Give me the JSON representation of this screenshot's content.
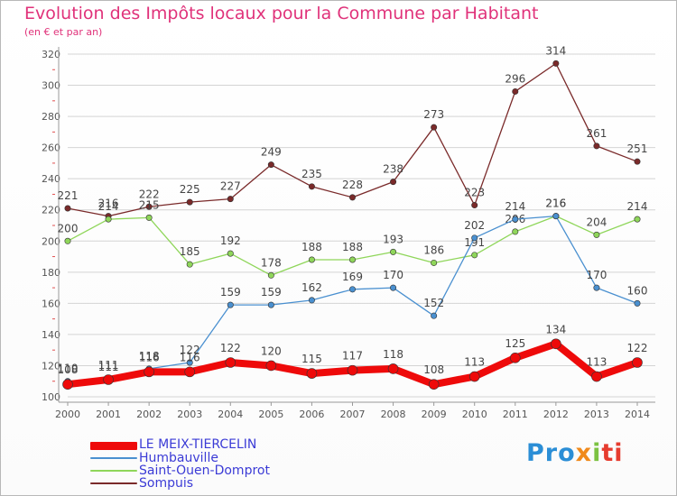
{
  "header": {
    "title": "Evolution des Impôts locaux pour la Commune par Habitant",
    "subtitle": "(en € et par an)"
  },
  "logo": {
    "parts": [
      "Pro",
      "x",
      "i",
      "ti"
    ]
  },
  "colors": {
    "title": "#e0327a",
    "axis": "#555555",
    "grid": "#d4d4d4",
    "legend_text": "#3b3bd6"
  },
  "chart_data": {
    "type": "line",
    "title": "Evolution des Impôts locaux pour la Commune par Habitant",
    "subtitle": "(en € et par an)",
    "x": [
      "2000",
      "2001",
      "2002",
      "2003",
      "2004",
      "2005",
      "2006",
      "2007",
      "2008",
      "2009",
      "2010",
      "2011",
      "2012",
      "2013",
      "2014"
    ],
    "ylim": [
      100,
      320
    ],
    "yticks": [
      100,
      120,
      140,
      160,
      180,
      200,
      220,
      240,
      260,
      280,
      300,
      320
    ],
    "grid": true,
    "legend_position": "bottom-left",
    "series": [
      {
        "name": "Sompuis",
        "color": "#7a2a2a",
        "values": [
          221,
          216,
          222,
          225,
          227,
          249,
          235,
          228,
          238,
          273,
          223,
          296,
          314,
          261,
          251
        ],
        "labels": [
          "221",
          "216",
          "222",
          "225",
          "227",
          "249",
          "235",
          "228",
          "238",
          "273",
          "223",
          "296",
          "314",
          "261",
          "251"
        ]
      },
      {
        "name": "Saint-Ouen-Domprot",
        "color": "#8fd65a",
        "values": [
          200,
          214,
          215,
          185,
          192,
          178,
          188,
          188,
          193,
          186,
          191,
          206,
          216,
          204,
          214
        ],
        "labels": [
          "200",
          "214",
          "215",
          "185",
          "192",
          "178",
          "188",
          "188",
          "193",
          "186",
          "191",
          "206",
          "216",
          "204",
          "214"
        ]
      },
      {
        "name": "Humbauville",
        "color": "#4a90d0",
        "values": [
          110,
          111,
          118,
          122,
          159,
          159,
          162,
          169,
          170,
          152,
          202,
          214,
          216,
          170,
          160
        ],
        "labels": [
          "110",
          "111",
          "118",
          "122",
          "159",
          "159",
          "162",
          "169",
          "170",
          "152",
          "202",
          "214",
          "216",
          "170",
          "160"
        ]
      },
      {
        "name": "LE MEIX-TIERCELIN",
        "color": "#ee0a0a",
        "values": [
          108,
          111,
          116,
          116,
          122,
          120,
          115,
          117,
          118,
          108,
          113,
          125,
          134,
          113,
          122
        ],
        "labels": [
          "108",
          "111",
          "116",
          "116",
          "122",
          "120",
          "115",
          "117",
          "118",
          "108",
          "113",
          "125",
          "134",
          "113",
          "122"
        ]
      }
    ],
    "legend": [
      "LE MEIX-TIERCELIN",
      "Humbauville",
      "Saint-Ouen-Domprot",
      "Sompuis"
    ]
  }
}
